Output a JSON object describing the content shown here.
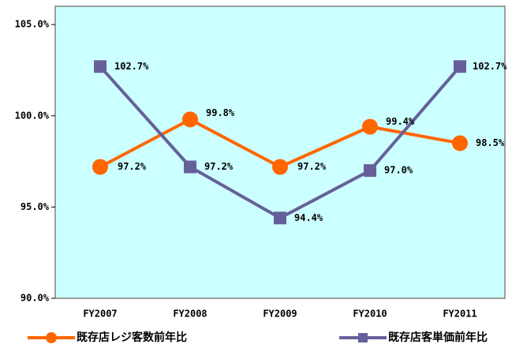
{
  "chart_data": {
    "type": "line",
    "categories": [
      "FY2007",
      "FY2008",
      "FY2009",
      "FY2010",
      "FY2011"
    ],
    "series": [
      {
        "name": "既存店レジ客数前年比",
        "color": "#ff6600",
        "values": [
          97.2,
          99.8,
          97.2,
          99.4,
          98.5
        ],
        "value_labels": [
          "97.2%",
          "99.8%",
          "97.2%",
          "99.4%",
          "98.5%"
        ]
      },
      {
        "name": "既存店客単価前年比",
        "color": "#66609a",
        "values": [
          102.7,
          97.2,
          94.4,
          97.0,
          102.7
        ],
        "value_labels": [
          "102.7%",
          "97.2%",
          "94.4%",
          "97.0%",
          "102.7%"
        ]
      }
    ],
    "ylim": [
      90,
      106
    ],
    "yticks": [
      {
        "value": 90,
        "label": "90.0%"
      },
      {
        "value": 95,
        "label": "95.0%"
      },
      {
        "value": 100,
        "label": "100.0%"
      },
      {
        "value": 105,
        "label": "105.0%"
      }
    ],
    "background": "#ccffff"
  }
}
